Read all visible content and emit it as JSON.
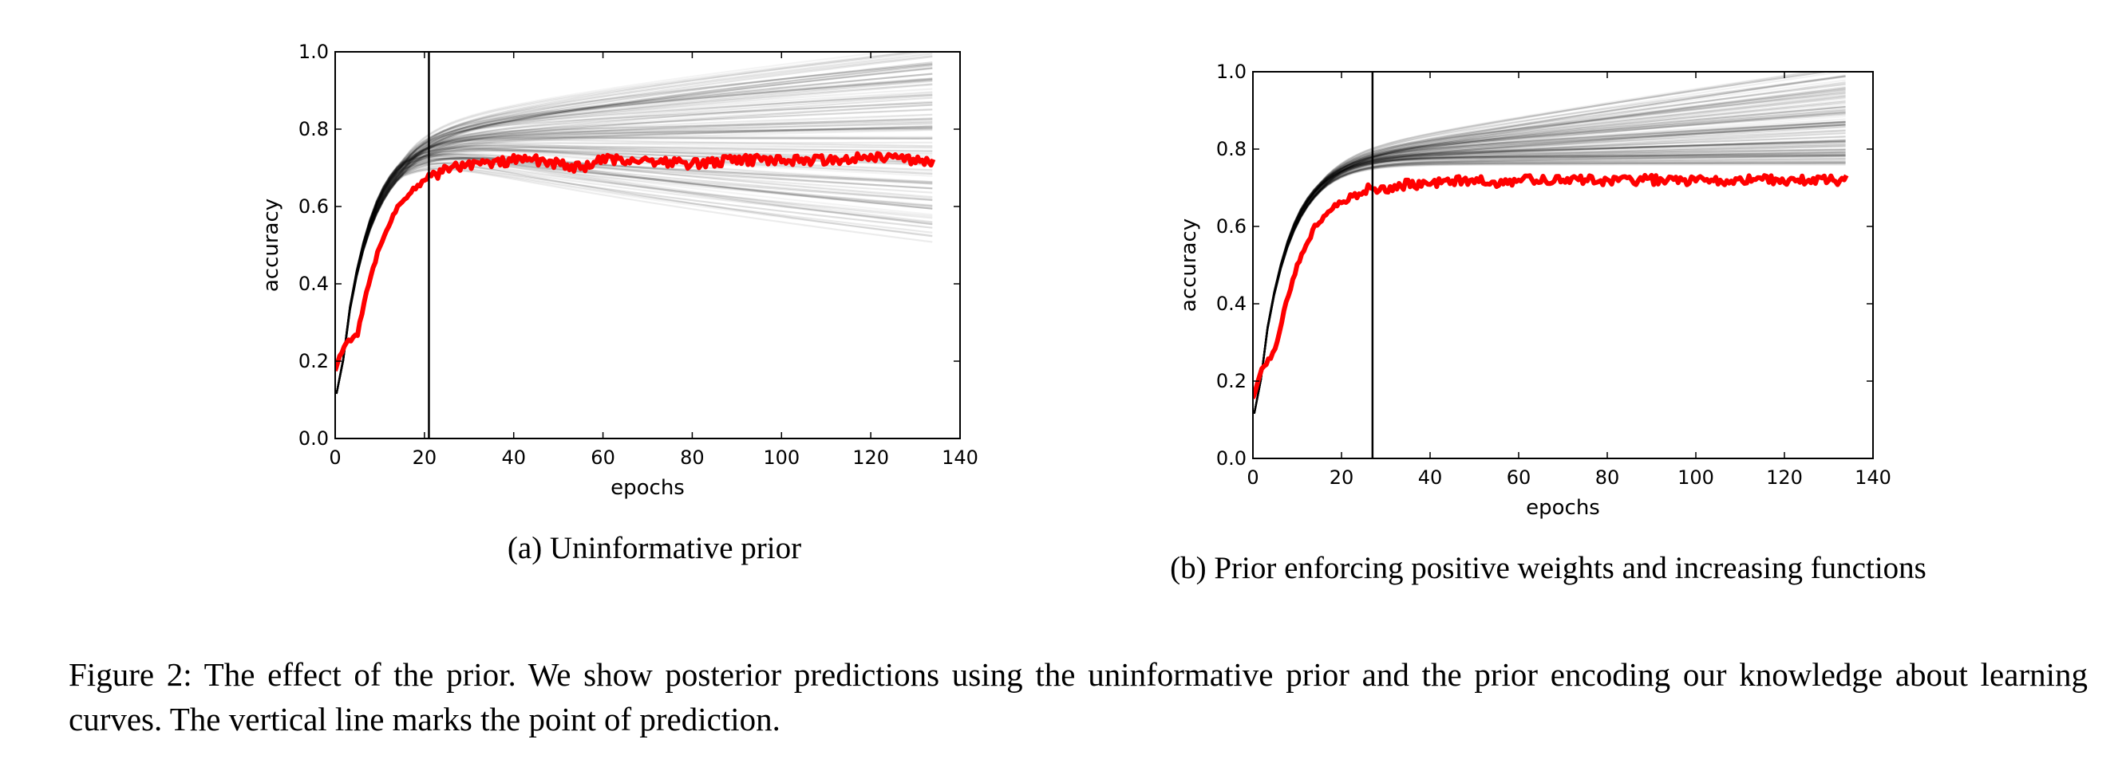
{
  "figure": {
    "caption": "Figure 2: The effect of the prior. We show posterior predictions using the uninformative prior and the prior encoding our knowledge about learning curves. The vertical line marks the point of prediction."
  },
  "colors": {
    "observed": "#ff0000",
    "posterior": "#000000",
    "axes": "#000000"
  },
  "chart_data": [
    {
      "type": "line",
      "subcaption": "(a) Uninformative prior",
      "xlabel": "epochs",
      "ylabel": "accuracy",
      "xlim": [
        0,
        140
      ],
      "ylim": [
        0.0,
        1.0
      ],
      "xticks": [
        "0",
        "20",
        "40",
        "60",
        "80",
        "100",
        "120",
        "140"
      ],
      "yticks": [
        "0.0",
        "0.2",
        "0.4",
        "0.6",
        "0.8",
        "1.0"
      ],
      "grid": false,
      "prediction_epoch": 21,
      "observed": {
        "x": [
          0,
          2,
          5,
          7,
          10,
          14,
          18,
          22,
          26,
          30,
          35,
          40,
          45,
          50,
          55,
          60,
          70,
          80,
          90,
          100,
          110,
          120,
          130,
          134
        ],
        "y": [
          0.18,
          0.24,
          0.27,
          0.38,
          0.5,
          0.6,
          0.65,
          0.68,
          0.7,
          0.71,
          0.71,
          0.72,
          0.72,
          0.71,
          0.7,
          0.72,
          0.72,
          0.71,
          0.72,
          0.72,
          0.72,
          0.73,
          0.72,
          0.71
        ]
      },
      "posterior_samples": {
        "x_end": 134,
        "final_accuracy_range": [
          0.45,
          0.95
        ],
        "peak_region": {
          "x": 30,
          "y": 0.7
        }
      }
    },
    {
      "type": "line",
      "subcaption": "(b) Prior enforcing positive weights and increasing functions",
      "xlabel": "epochs",
      "ylabel": "accuracy",
      "xlim": [
        0,
        140
      ],
      "ylim": [
        0.0,
        1.0
      ],
      "xticks": [
        "0",
        "20",
        "40",
        "60",
        "80",
        "100",
        "120",
        "140"
      ],
      "yticks": [
        "0.0",
        "0.2",
        "0.4",
        "0.6",
        "0.8",
        "1.0"
      ],
      "grid": false,
      "prediction_epoch": 27,
      "observed": {
        "x": [
          0,
          2,
          5,
          7,
          10,
          14,
          18,
          22,
          27,
          30,
          35,
          40,
          45,
          50,
          55,
          60,
          70,
          80,
          90,
          100,
          110,
          120,
          130,
          134
        ],
        "y": [
          0.16,
          0.23,
          0.28,
          0.38,
          0.5,
          0.6,
          0.65,
          0.68,
          0.7,
          0.7,
          0.71,
          0.71,
          0.72,
          0.72,
          0.71,
          0.72,
          0.72,
          0.72,
          0.72,
          0.72,
          0.72,
          0.72,
          0.72,
          0.72
        ]
      },
      "posterior_samples": {
        "x_end": 134,
        "final_accuracy_range": [
          0.7,
          0.94
        ]
      }
    }
  ]
}
